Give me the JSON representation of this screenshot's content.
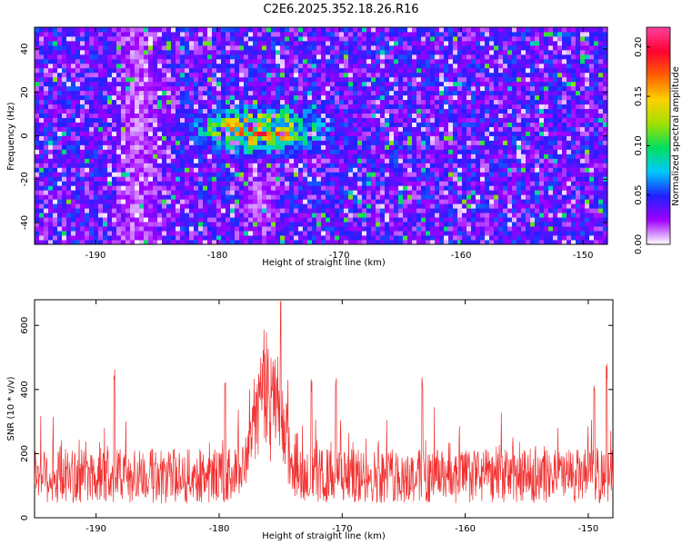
{
  "title": "C2E6.2025.352.18.26.R16",
  "chart_data": [
    {
      "type": "heatmap",
      "xlabel": "Height of straight line (km)",
      "ylabel": "Frequency (Hz)",
      "xlim": [
        -195,
        -148
      ],
      "ylim": [
        -50,
        50
      ],
      "x_ticks": [
        -190,
        -180,
        -170,
        -160,
        -150
      ],
      "y_ticks": [
        -40,
        -20,
        0,
        20,
        40
      ],
      "colorbar": {
        "label": "Normalized spectral amplitude",
        "range": [
          0,
          0.22
        ],
        "ticks": [
          "0.00",
          "0.05",
          "0.10",
          "0.15",
          "0.20"
        ],
        "colors": [
          "#ffffff",
          "#a000ff",
          "#2020ff",
          "#00c8ff",
          "#00e060",
          "#a0e000",
          "#ffd000",
          "#ff6000",
          "#ff0030",
          "#ff40a0"
        ]
      },
      "hotspot": {
        "height_km": -176.5,
        "frequency_hz": 3,
        "peak_amplitude": 0.2
      },
      "background_level": 0.04
    },
    {
      "type": "line",
      "xlabel": "Height of straight line (km)",
      "ylabel": "SNR (10 * v/v)",
      "xlim": [
        -195,
        -148
      ],
      "ylim": [
        0,
        680
      ],
      "x_ticks": [
        -190,
        -180,
        -170,
        -160,
        -150
      ],
      "y_ticks": [
        0,
        200,
        400,
        600
      ],
      "series": [
        {
          "name": "SNR",
          "color": "#f03030",
          "baseline": 130,
          "noise_range": [
            30,
            350
          ],
          "peak": {
            "x": -176,
            "max": 675,
            "typical_max": 600
          },
          "secondary_spikes": [
            {
              "x": -188.5,
              "value": 470
            },
            {
              "x": -179.5,
              "value": 440
            },
            {
              "x": -172.5,
              "value": 435
            },
            {
              "x": -170.5,
              "value": 440
            },
            {
              "x": -163.5,
              "value": 440
            },
            {
              "x": -149.5,
              "value": 415
            },
            {
              "x": -148.5,
              "value": 480
            }
          ]
        }
      ]
    }
  ]
}
